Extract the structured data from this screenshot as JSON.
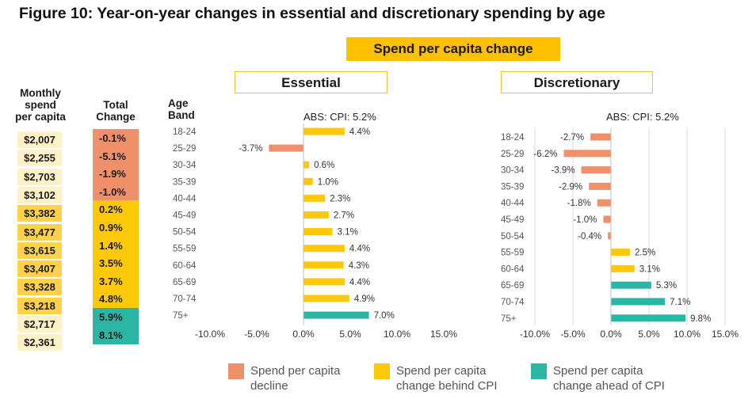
{
  "title": "Figure 10: Year-on-year changes in essential and discretionary spending by age",
  "banner": "Spend per capita change",
  "headers": {
    "monthly_spend": [
      "Monthly",
      "spend",
      "per capita"
    ],
    "total_change": [
      "Total",
      "Change"
    ],
    "age_band": [
      "Age",
      "Band"
    ]
  },
  "colors": {
    "decline": "#f0906a",
    "behind_cpi": "#ffc90a",
    "ahead_cpi": "#2ab5a5",
    "spend_light": "#fff2c6",
    "spend_dark": "#ffd24a",
    "grid": "#d9d9d9"
  },
  "legend": [
    {
      "key": "decline",
      "line1": "Spend per capita",
      "line2": "decline"
    },
    {
      "key": "behind_cpi",
      "line1": "Spend per capita",
      "line2": "change behind CPI"
    },
    {
      "key": "ahead_cpi",
      "line1": "Spend per capita",
      "line2": "change ahead of CPI"
    }
  ],
  "table": {
    "rows": [
      {
        "spend": "$2,007",
        "total": "-0.1%",
        "cat": "decline"
      },
      {
        "spend": "$2,255",
        "total": "-5.1%",
        "cat": "decline"
      },
      {
        "spend": "$2,703",
        "total": "-1.9%",
        "cat": "decline"
      },
      {
        "spend": "$3,102",
        "total": "-1.0%",
        "cat": "decline"
      },
      {
        "spend": "$3,382",
        "total": "0.2%",
        "cat": "behind_cpi"
      },
      {
        "spend": "$3,477",
        "total": "0.9%",
        "cat": "behind_cpi"
      },
      {
        "spend": "$3,615",
        "total": "1.4%",
        "cat": "behind_cpi"
      },
      {
        "spend": "$3,407",
        "total": "3.5%",
        "cat": "behind_cpi"
      },
      {
        "spend": "$3,328",
        "total": "3.7%",
        "cat": "behind_cpi"
      },
      {
        "spend": "$3,218",
        "total": "4.8%",
        "cat": "behind_cpi"
      },
      {
        "spend": "$2,717",
        "total": "5.9%",
        "cat": "ahead_cpi"
      },
      {
        "spend": "$2,361",
        "total": "8.1%",
        "cat": "ahead_cpi"
      }
    ]
  },
  "chart_data": [
    {
      "type": "bar",
      "orientation": "horizontal",
      "title": "Essential",
      "annotation": "ABS: CPI: 5.2%",
      "cpi": 5.2,
      "categories": [
        "18-24",
        "25-29",
        "30-34",
        "35-39",
        "40-44",
        "45-49",
        "50-54",
        "55-59",
        "60-64",
        "65-69",
        "70-74",
        "75+"
      ],
      "values": [
        4.4,
        -3.7,
        0.6,
        1.0,
        2.3,
        2.7,
        3.1,
        4.4,
        4.3,
        4.4,
        4.9,
        7.0
      ],
      "value_labels": [
        "4.4%",
        "-3.7%",
        "0.6%",
        "1.0%",
        "2.3%",
        "2.7%",
        "3.1%",
        "4.4%",
        "4.3%",
        "4.4%",
        "4.9%",
        "7.0%"
      ],
      "xlim": [
        -10,
        15
      ],
      "xticks": [
        -10,
        -5,
        0,
        5,
        10,
        15
      ],
      "xtick_labels": [
        "-10.0%",
        "-5.0%",
        "0.0%",
        "5.0%",
        "10.0%",
        "15.0%"
      ],
      "grid": false
    },
    {
      "type": "bar",
      "orientation": "horizontal",
      "title": "Discretionary",
      "annotation": "ABS: CPI: 5.2%",
      "cpi": 5.2,
      "categories": [
        "18-24",
        "25-29",
        "30-34",
        "35-39",
        "40-44",
        "45-49",
        "50-54",
        "55-59",
        "60-64",
        "65-69",
        "70-74",
        "75+"
      ],
      "values": [
        -2.7,
        -6.2,
        -3.9,
        -2.9,
        -1.8,
        -1.0,
        -0.4,
        2.5,
        3.1,
        5.3,
        7.1,
        9.8
      ],
      "value_labels": [
        "-2.7%",
        "-6.2%",
        "-3.9%",
        "-2.9%",
        "-1.8%",
        "-1.0%",
        "-0.4%",
        "2.5%",
        "3.1%",
        "5.3%",
        "7.1%",
        "9.8%"
      ],
      "xlim": [
        -10,
        15
      ],
      "xticks": [
        -10,
        -5,
        0,
        5,
        10,
        15
      ],
      "xtick_labels": [
        "-10.0%",
        "-5.0%",
        "0.0%",
        "5.0%",
        "10.0%",
        "15.0%"
      ],
      "grid": true
    }
  ]
}
